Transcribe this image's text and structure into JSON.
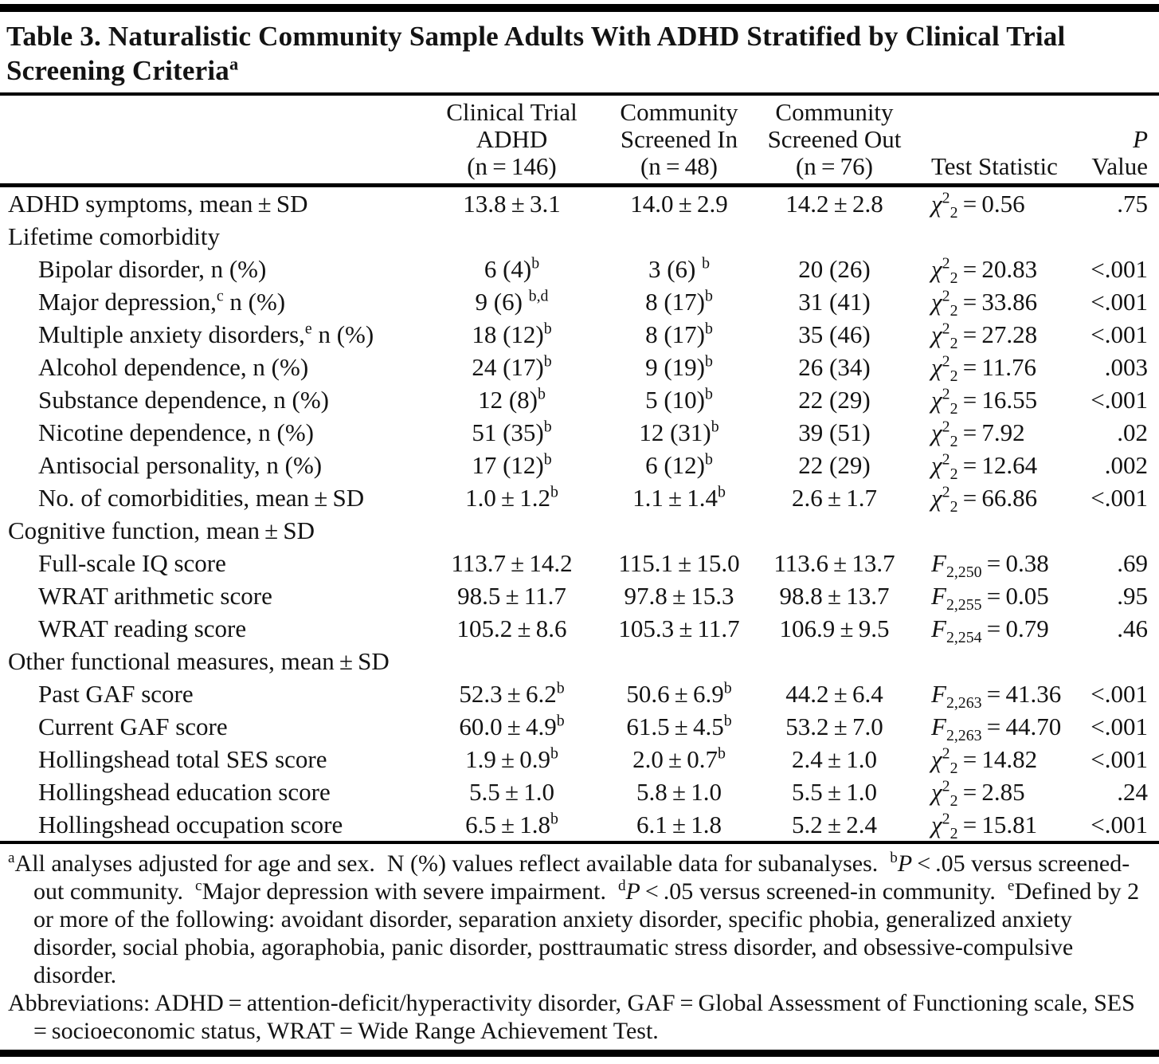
{
  "colors": {
    "background": "#ffffff",
    "text": "#131313",
    "rule": "#000000"
  },
  "title_lines": [
    "Table 3. Naturalistic Community Sample Adults With ADHD Stratified by Clinical Trial",
    "Screening Criteria^a^"
  ],
  "header": {
    "columns": [
      {
        "id": "row-label",
        "lines": []
      },
      {
        "id": "clinical-trial-adhd",
        "lines": [
          "Clinical Trial",
          "ADHD",
          "(n = 146)"
        ]
      },
      {
        "id": "community-screened-in",
        "lines": [
          "Community",
          "Screened In",
          "(n = 48)"
        ]
      },
      {
        "id": "community-screened-out",
        "lines": [
          "Community",
          "Screened Out",
          "(n = 76)"
        ]
      },
      {
        "id": "test-statistic",
        "lines": [
          "Test Statistic"
        ]
      },
      {
        "id": "p-value",
        "lines": [
          "*P*",
          "Value"
        ]
      }
    ]
  },
  "rows": [
    {
      "type": "data",
      "indent": false,
      "label": "ADHD symptoms, mean ± SD",
      "values": [
        "13.8 ± 3.1",
        "14.0 ± 2.9",
        "14.2 ± 2.8"
      ],
      "stat": {
        "sym": "χ",
        "sup": "2",
        "sub": "2",
        "val": "0.56"
      },
      "p": ".75"
    },
    {
      "type": "section",
      "label": "Lifetime comorbidity"
    },
    {
      "type": "data",
      "indent": true,
      "label": "Bipolar disorder, n (%)",
      "values": [
        "6 (4)^b^",
        "3 (6) ^b^",
        "20 (26)"
      ],
      "stat": {
        "sym": "χ",
        "sup": "2",
        "sub": "2",
        "val": "20.83"
      },
      "p": "<.001"
    },
    {
      "type": "data",
      "indent": true,
      "label": "Major depression,^c^ n (%)",
      "values": [
        "9 (6) ^b,d^",
        "8 (17)^b^",
        "31 (41)"
      ],
      "stat": {
        "sym": "χ",
        "sup": "2",
        "sub": "2",
        "val": "33.86"
      },
      "p": "<.001"
    },
    {
      "type": "data",
      "indent": true,
      "label": "Multiple anxiety disorders,^e^ n (%)",
      "values": [
        "18 (12)^b^",
        "8 (17)^b^",
        "35 (46)"
      ],
      "stat": {
        "sym": "χ",
        "sup": "2",
        "sub": "2",
        "val": "27.28"
      },
      "p": "<.001"
    },
    {
      "type": "data",
      "indent": true,
      "label": "Alcohol dependence, n (%)",
      "values": [
        "24 (17)^b^",
        "9 (19)^b^",
        "26 (34)"
      ],
      "stat": {
        "sym": "χ",
        "sup": "2",
        "sub": "2",
        "val": "11.76"
      },
      "p": ".003"
    },
    {
      "type": "data",
      "indent": true,
      "label": "Substance dependence, n (%)",
      "values": [
        "12 (8)^b^",
        "5 (10)^b^",
        "22 (29)"
      ],
      "stat": {
        "sym": "χ",
        "sup": "2",
        "sub": "2",
        "val": "16.55"
      },
      "p": "<.001"
    },
    {
      "type": "data",
      "indent": true,
      "label": "Nicotine dependence, n (%)",
      "values": [
        "51 (35)^b^",
        "12 (31)^b^",
        "39 (51)"
      ],
      "stat": {
        "sym": "χ",
        "sup": "2",
        "sub": "2",
        "val": "7.92"
      },
      "p": ".02"
    },
    {
      "type": "data",
      "indent": true,
      "label": "Antisocial personality, n (%)",
      "values": [
        "17 (12)^b^",
        "6 (12)^b^",
        "22 (29)"
      ],
      "stat": {
        "sym": "χ",
        "sup": "2",
        "sub": "2",
        "val": "12.64"
      },
      "p": ".002"
    },
    {
      "type": "data",
      "indent": true,
      "label": "No. of comorbidities, mean ± SD",
      "values": [
        "1.0 ± 1.2^b^",
        "1.1 ± 1.4^b^",
        "2.6 ± 1.7"
      ],
      "stat": {
        "sym": "χ",
        "sup": "2",
        "sub": "2",
        "val": "66.86"
      },
      "p": "<.001"
    },
    {
      "type": "section",
      "label": "Cognitive function, mean ± SD"
    },
    {
      "type": "data",
      "indent": true,
      "label": "Full-scale IQ score",
      "values": [
        "113.7 ± 14.2",
        "115.1 ± 15.0",
        "113.6 ± 13.7"
      ],
      "stat": {
        "sym": "F",
        "sup": "",
        "sub": "2,250",
        "val": "0.38"
      },
      "p": ".69"
    },
    {
      "type": "data",
      "indent": true,
      "label": "WRAT arithmetic score",
      "values": [
        "98.5 ± 11.7",
        "97.8 ± 15.3",
        "98.8 ± 13.7"
      ],
      "stat": {
        "sym": "F",
        "sup": "",
        "sub": "2,255",
        "val": "0.05"
      },
      "p": ".95"
    },
    {
      "type": "data",
      "indent": true,
      "label": "WRAT reading score",
      "values": [
        "105.2 ± 8.6",
        "105.3 ± 11.7",
        "106.9 ± 9.5"
      ],
      "stat": {
        "sym": "F",
        "sup": "",
        "sub": "2,254",
        "val": "0.79"
      },
      "p": ".46"
    },
    {
      "type": "section",
      "label": "Other functional measures, mean ± SD"
    },
    {
      "type": "data",
      "indent": true,
      "label": "Past GAF score",
      "values": [
        "52.3 ± 6.2^b^",
        "50.6 ± 6.9^b^",
        "44.2 ± 6.4"
      ],
      "stat": {
        "sym": "F",
        "sup": "",
        "sub": "2,263",
        "val": "41.36"
      },
      "p": "<.001"
    },
    {
      "type": "data",
      "indent": true,
      "label": "Current GAF score",
      "values": [
        "60.0 ± 4.9^b^",
        "61.5 ± 4.5^b^",
        "53.2 ± 7.0"
      ],
      "stat": {
        "sym": "F",
        "sup": "",
        "sub": "2,263",
        "val": "44.70"
      },
      "p": "<.001"
    },
    {
      "type": "data",
      "indent": true,
      "label": "Hollingshead total SES score",
      "values": [
        "1.9 ± 0.9^b^",
        "2.0 ± 0.7^b^",
        "2.4 ± 1.0"
      ],
      "stat": {
        "sym": "χ",
        "sup": "2",
        "sub": "2",
        "val": "14.82"
      },
      "p": "<.001"
    },
    {
      "type": "data",
      "indent": true,
      "label": "Hollingshead education score",
      "values": [
        "5.5 ± 1.0",
        "5.8 ± 1.0",
        "5.5 ± 1.0"
      ],
      "stat": {
        "sym": "χ",
        "sup": "2",
        "sub": "2",
        "val": "2.85"
      },
      "p": ".24"
    },
    {
      "type": "data",
      "indent": true,
      "label": "Hollingshead occupation score",
      "values": [
        "6.5 ± 1.8^b^",
        "6.1 ± 1.8",
        "5.2 ± 2.4"
      ],
      "stat": {
        "sym": "χ",
        "sup": "2",
        "sub": "2",
        "val": "15.81"
      },
      "p": "<.001"
    }
  ],
  "footnotes": [
    "^a^All analyses adjusted for age and sex. N (%) values reflect available data for subanalyses. ^b^*P* < .05 versus screened-out community. ^c^Major depression with severe impairment. ^d^*P* < .05 versus screened-in community. ^e^Defined by 2 or more of the following: avoidant disorder, separation anxiety disorder, specific phobia, generalized anxiety disorder, social phobia, agoraphobia, panic disorder, posttraumatic stress disorder, and obsessive-compulsive disorder.",
    "Abbreviations: ADHD = attention-deficit/hyperactivity disorder, GAF = Global Assessment of Functioning scale, SES = socioeconomic status, WRAT = Wide Range Achievement Test."
  ]
}
